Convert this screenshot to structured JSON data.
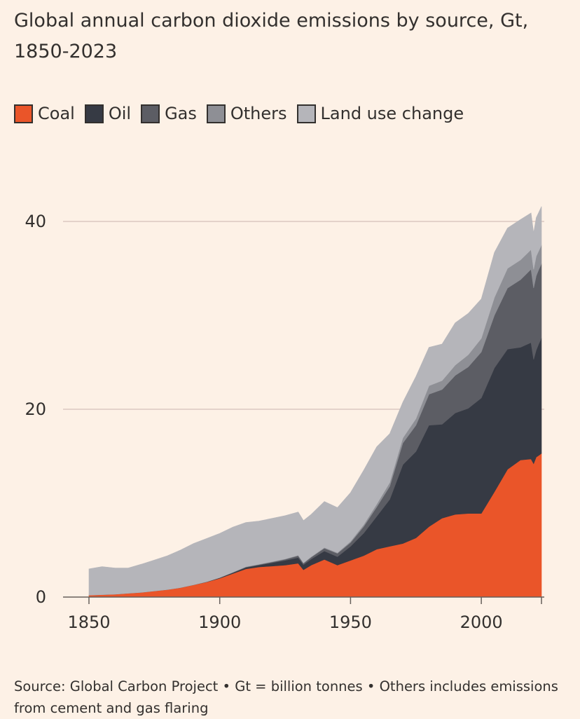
{
  "title": "Global annual carbon dioxide emissions by source, Gt, 1850-2023",
  "source": "Source: Global Carbon Project • Gt = billion tonnes • Others includes emissions from cement and gas flaring",
  "legend": [
    {
      "label": "Coal",
      "color": "#ea5529"
    },
    {
      "label": "Oil",
      "color": "#363a44"
    },
    {
      "label": "Gas",
      "color": "#5c5d64"
    },
    {
      "label": "Others",
      "color": "#8e8f95"
    },
    {
      "label": "Land use change",
      "color": "#b5b5ba"
    }
  ],
  "chart_data": {
    "type": "area",
    "stacked": true,
    "title": "Global annual carbon dioxide emissions by source, Gt, 1850-2023",
    "xlabel": "",
    "ylabel": "",
    "xlim": [
      1850,
      2023
    ],
    "ylim": [
      0,
      40
    ],
    "xticks": [
      1850,
      1900,
      1950,
      2000
    ],
    "yticks": [
      0,
      20,
      40
    ],
    "grid": true,
    "legend_position": "top",
    "x": [
      1850,
      1855,
      1860,
      1865,
      1870,
      1875,
      1880,
      1885,
      1890,
      1895,
      1900,
      1905,
      1910,
      1915,
      1920,
      1925,
      1930,
      1932,
      1935,
      1940,
      1945,
      1950,
      1955,
      1960,
      1965,
      1970,
      1975,
      1980,
      1985,
      1990,
      1995,
      2000,
      2005,
      2010,
      2015,
      2019,
      2020,
      2021,
      2022,
      2023
    ],
    "series": [
      {
        "name": "Coal",
        "color": "#ea5529",
        "values": [
          0.2,
          0.25,
          0.3,
          0.4,
          0.5,
          0.65,
          0.8,
          1.0,
          1.3,
          1.6,
          2.0,
          2.5,
          3.0,
          3.2,
          3.3,
          3.4,
          3.6,
          2.9,
          3.4,
          4.0,
          3.4,
          3.9,
          4.4,
          5.1,
          5.4,
          5.7,
          6.3,
          7.5,
          8.4,
          8.8,
          8.9,
          8.9,
          11.2,
          13.6,
          14.6,
          14.7,
          14.2,
          14.9,
          15.1,
          15.3
        ]
      },
      {
        "name": "Oil",
        "color": "#363a44",
        "values": [
          0,
          0,
          0,
          0,
          0,
          0,
          0,
          0,
          0,
          0.02,
          0.05,
          0.1,
          0.15,
          0.2,
          0.35,
          0.5,
          0.6,
          0.55,
          0.65,
          0.9,
          0.9,
          1.5,
          2.4,
          3.5,
          5.0,
          8.4,
          9.2,
          10.8,
          10.0,
          10.8,
          11.2,
          12.3,
          13.2,
          12.8,
          12.0,
          12.4,
          11.1,
          11.4,
          11.9,
          12.3
        ]
      },
      {
        "name": "Gas",
        "color": "#5c5d64",
        "values": [
          0,
          0,
          0,
          0,
          0,
          0,
          0,
          0,
          0,
          0,
          0.01,
          0.02,
          0.05,
          0.06,
          0.08,
          0.12,
          0.2,
          0.15,
          0.2,
          0.3,
          0.35,
          0.4,
          0.7,
          1.0,
          1.4,
          2.3,
          2.8,
          3.3,
          3.7,
          4.0,
          4.4,
          4.9,
          5.6,
          6.5,
          7.2,
          7.8,
          7.6,
          7.9,
          7.9,
          7.9
        ]
      },
      {
        "name": "Others",
        "color": "#8e8f95",
        "values": [
          0,
          0,
          0,
          0,
          0,
          0,
          0,
          0.01,
          0.01,
          0.02,
          0.02,
          0.03,
          0.04,
          0.04,
          0.05,
          0.05,
          0.06,
          0.05,
          0.06,
          0.08,
          0.08,
          0.13,
          0.2,
          0.3,
          0.4,
          0.55,
          0.7,
          0.9,
          0.95,
          1.1,
          1.3,
          1.45,
          1.9,
          2.1,
          2.1,
          2.1,
          2.0,
          2.1,
          2.0,
          2.0
        ]
      },
      {
        "name": "Land use change",
        "color": "#b5b5ba",
        "values": [
          2.8,
          3.0,
          2.8,
          2.7,
          3.0,
          3.3,
          3.6,
          4.0,
          4.4,
          4.6,
          4.7,
          4.8,
          4.7,
          4.6,
          4.6,
          4.6,
          4.6,
          4.5,
          4.5,
          4.9,
          4.8,
          5.2,
          5.8,
          6.1,
          5.2,
          3.8,
          4.5,
          4.1,
          3.9,
          4.5,
          4.4,
          4.2,
          4.8,
          4.3,
          4.3,
          3.9,
          3.9,
          4.1,
          4.1,
          4.1
        ]
      }
    ]
  }
}
